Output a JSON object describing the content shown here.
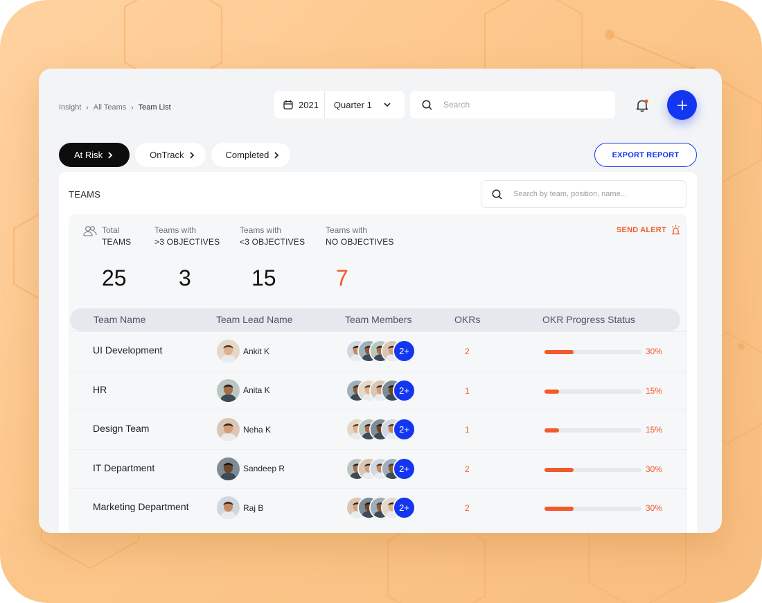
{
  "breadcrumb": {
    "items": [
      "Insight",
      "All Teams"
    ],
    "current": "Team List"
  },
  "period": {
    "year": "2021",
    "quarter": "Quarter 1"
  },
  "topsearch": {
    "placeholder": "Search"
  },
  "filters": [
    {
      "label": "At Risk",
      "active": true
    },
    {
      "label": "OnTrack",
      "active": false
    },
    {
      "label": "Completed",
      "active": false
    }
  ],
  "export_label": "EXPORT REPORT",
  "panel": {
    "title": "TEAMS",
    "search_placeholder": "Search by team, position, name..."
  },
  "stats": [
    {
      "small": "Total",
      "big": "TEAMS",
      "value": "25"
    },
    {
      "small": "Teams with",
      "big": ">3 OBJECTIVES",
      "value": "3"
    },
    {
      "small": "Teams with",
      "big": "<3 OBJECTIVES",
      "value": "15"
    },
    {
      "small": "Teams with",
      "big": "NO OBJECTIVES",
      "value": "7"
    }
  ],
  "send_alert": "SEND ALERT",
  "table": {
    "columns": [
      "Team Name",
      "Team Lead Name",
      "Team Members",
      "OKRs",
      "OKR Progress Status"
    ],
    "rows": [
      {
        "team": "UI Development",
        "lead": "Ankit K",
        "more": "2+",
        "okrs": "2",
        "progress": 0.3,
        "pct": "30%"
      },
      {
        "team": "HR",
        "lead": "Anita K",
        "more": "2+",
        "okrs": "1",
        "progress": 0.15,
        "pct": "15%"
      },
      {
        "team": "Design Team",
        "lead": "Neha K",
        "more": "2+",
        "okrs": "1",
        "progress": 0.15,
        "pct": "15%"
      },
      {
        "team": "IT Department",
        "lead": "Sandeep R",
        "more": "2+",
        "okrs": "2",
        "progress": 0.3,
        "pct": "30%"
      },
      {
        "team": "Marketing Department",
        "lead": "Raj B",
        "more": "2+",
        "okrs": "2",
        "progress": 0.3,
        "pct": "30%"
      }
    ]
  },
  "colors": {
    "accent": "#1337f0",
    "warning": "#f25a2b",
    "background": "#fcc68a"
  }
}
